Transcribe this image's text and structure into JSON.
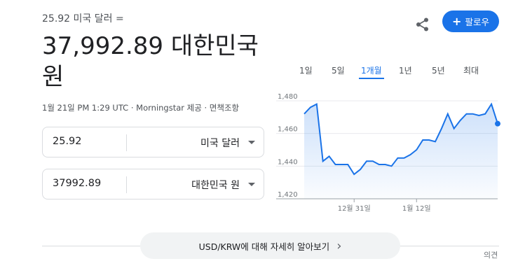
{
  "header": {
    "subtitle": "25.92 미국 달러 =",
    "big_value": "37,992.89 대한민국 원",
    "meta": "1월 21일 PM 1:29 UTC · Morningstar 제공 · 면책조항",
    "follow_label": "팔로우",
    "follow_plus": "+"
  },
  "converter": {
    "from": {
      "value": "25.92",
      "unit": "미국 달러"
    },
    "to": {
      "value": "37992.89",
      "unit": "대한민국 원"
    }
  },
  "tabs": [
    {
      "label": "1일",
      "active": false
    },
    {
      "label": "5일",
      "active": false
    },
    {
      "label": "1개월",
      "active": true
    },
    {
      "label": "1년",
      "active": false
    },
    {
      "label": "5년",
      "active": false
    },
    {
      "label": "최대",
      "active": false
    }
  ],
  "chart_data": {
    "type": "area",
    "y_ticks": [
      "1,480",
      "1,460",
      "1,440",
      "1,420"
    ],
    "ylim": [
      1420,
      1480
    ],
    "x_tick_labels": [
      "12월 31일",
      "1월 12일"
    ],
    "values": [
      1472,
      1476,
      1478,
      1443,
      1446,
      1441,
      1441,
      1441,
      1435,
      1438,
      1443,
      1443,
      1441,
      1441,
      1440,
      1445,
      1445,
      1447,
      1450,
      1456,
      1456,
      1455,
      1463,
      1472,
      1463,
      1468,
      1472,
      1472,
      1471,
      1472,
      1478,
      1466
    ],
    "color": "#1a73e8",
    "fill_color": "#e8f0fe",
    "grid": true
  },
  "footer": {
    "more_label": "USD/KRW에 대해 자세히 알아보기",
    "more_arrow": "›",
    "feedback": "의견"
  }
}
